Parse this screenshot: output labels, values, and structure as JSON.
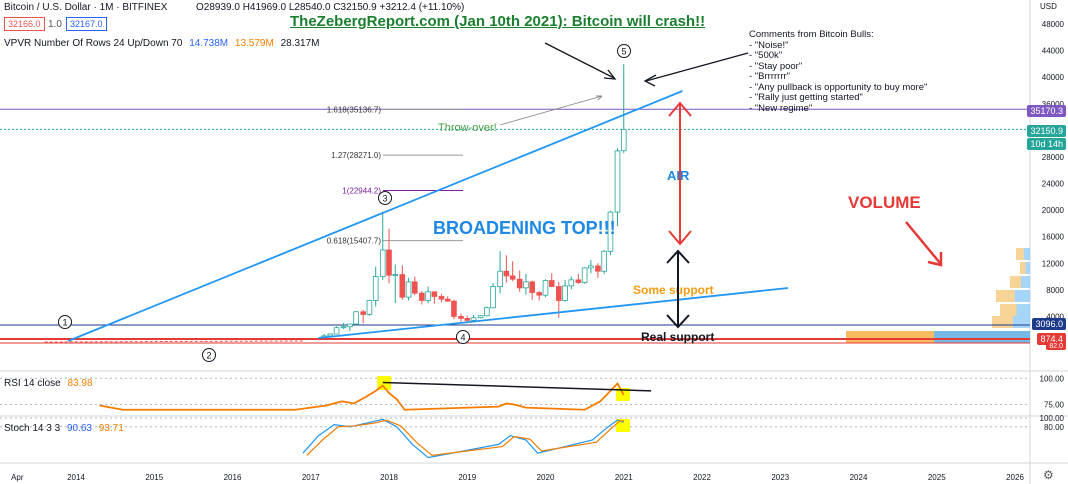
{
  "header": {
    "symbol": "Bitcoin / U.S. Dollar · 1M · BITFINEX",
    "ohlc": "O28939.0 H41969.0 L28540.0 C32150.9 +3212.4 (+11.10%)",
    "sell_price": "32166.0",
    "spread": "1.0",
    "buy_price": "32167.0",
    "vpvr_label": "VPVR Number Of Rows 24 Up/Down 70",
    "vpvr_up": "14.738M",
    "vpvr_down": "13.579M",
    "vpvr_total": "28.317M"
  },
  "currency": "USD",
  "title": "TheZebergReport.com (Jan 10th 2021): Bitcoin will crash!!",
  "comments": "Comments from Bitcoin Bulls:\n- \"Noise!\"\n- \"500k\"\n- \"Stay poor\"\n- \"Brrrrrrr\"\n- \"Any pullback is opportunity to buy more\"\n- \"Rally just getting started\"\n- \"New regime\"",
  "price_tags": {
    "level_35170": "35170.3",
    "last_price": "32150.9",
    "countdown": "10d 14h",
    "level_3096": "3096.0",
    "level_874": "874.4",
    "level_82": "82.0"
  },
  "colors": {
    "up_candle": "#26a69a",
    "down_candle": "#ef5350",
    "trendline": "#2196f3",
    "annotation_red": "#e53935",
    "rsi": "#f57c00",
    "stoch_k": "#2196f3",
    "stoch_d": "#f57c00",
    "highlight": "#ffff00"
  },
  "indicators": {
    "rsi_label": "RSI 14 close",
    "rsi_value": "83.98",
    "stoch_label": "Stoch 14 3 3",
    "stoch_k_value": "90.63",
    "stoch_d_value": "93.71"
  },
  "chart_data": {
    "type": "candlestick",
    "ylabel": "USD",
    "y_ticks": [
      4000,
      8000,
      12000,
      16000,
      20000,
      24000,
      28000,
      32000,
      36000,
      40000,
      44000,
      48000
    ],
    "x_ticks": [
      "Apr",
      "2014",
      "2015",
      "2016",
      "2017",
      "2018",
      "2019",
      "2020",
      "2021",
      "2022",
      "2023",
      "2024",
      "2025",
      "2026"
    ],
    "x_tick_years": [
      2013.25,
      2014,
      2015,
      2016,
      2017,
      2018,
      2019,
      2020,
      2021,
      2022,
      2023,
      2024,
      2025,
      2026
    ],
    "candles": [
      {
        "t": 2017.17,
        "o": 1000,
        "c": 1070,
        "h": 1350,
        "l": 900
      },
      {
        "t": 2017.25,
        "o": 1070,
        "c": 1350,
        "h": 1450,
        "l": 1000
      },
      {
        "t": 2017.33,
        "o": 1350,
        "c": 2300,
        "h": 2500,
        "l": 1300
      },
      {
        "t": 2017.42,
        "o": 2300,
        "c": 2450,
        "h": 3000,
        "l": 2100
      },
      {
        "t": 2017.5,
        "o": 2450,
        "c": 2850,
        "h": 2900,
        "l": 1800
      },
      {
        "t": 2017.58,
        "o": 2850,
        "c": 4700,
        "h": 4800,
        "l": 2700
      },
      {
        "t": 2017.67,
        "o": 4700,
        "c": 4300,
        "h": 5000,
        "l": 3000
      },
      {
        "t": 2017.75,
        "o": 4300,
        "c": 6400,
        "h": 6500,
        "l": 4100
      },
      {
        "t": 2017.83,
        "o": 6400,
        "c": 10000,
        "h": 11500,
        "l": 5500
      },
      {
        "t": 2017.92,
        "o": 10000,
        "c": 14000,
        "h": 19800,
        "l": 9500
      },
      {
        "t": 2018.0,
        "o": 14000,
        "c": 10200,
        "h": 17200,
        "l": 9000
      },
      {
        "t": 2018.08,
        "o": 10200,
        "c": 10300,
        "h": 11800,
        "l": 6000
      },
      {
        "t": 2018.17,
        "o": 10300,
        "c": 6900,
        "h": 11700,
        "l": 6500
      },
      {
        "t": 2018.25,
        "o": 6900,
        "c": 9200,
        "h": 9800,
        "l": 6400
      },
      {
        "t": 2018.33,
        "o": 9200,
        "c": 7500,
        "h": 10000,
        "l": 7200
      },
      {
        "t": 2018.42,
        "o": 7500,
        "c": 6400,
        "h": 7800,
        "l": 5800
      },
      {
        "t": 2018.5,
        "o": 6400,
        "c": 7700,
        "h": 8500,
        "l": 6000
      },
      {
        "t": 2018.58,
        "o": 7700,
        "c": 7000,
        "h": 7800,
        "l": 5900
      },
      {
        "t": 2018.67,
        "o": 7000,
        "c": 6600,
        "h": 7400,
        "l": 6100
      },
      {
        "t": 2018.75,
        "o": 6600,
        "c": 6300,
        "h": 7000,
        "l": 6200
      },
      {
        "t": 2018.83,
        "o": 6300,
        "c": 4000,
        "h": 6500,
        "l": 3600
      },
      {
        "t": 2018.92,
        "o": 4000,
        "c": 3700,
        "h": 4400,
        "l": 3200
      },
      {
        "t": 2019.0,
        "o": 3700,
        "c": 3400,
        "h": 4100,
        "l": 3300
      },
      {
        "t": 2019.08,
        "o": 3400,
        "c": 3800,
        "h": 4200,
        "l": 3300
      },
      {
        "t": 2019.17,
        "o": 3800,
        "c": 4100,
        "h": 4200,
        "l": 3700
      },
      {
        "t": 2019.25,
        "o": 4100,
        "c": 5300,
        "h": 5500,
        "l": 4000
      },
      {
        "t": 2019.33,
        "o": 5300,
        "c": 8500,
        "h": 9000,
        "l": 5200
      },
      {
        "t": 2019.42,
        "o": 8500,
        "c": 10800,
        "h": 13800,
        "l": 7500
      },
      {
        "t": 2019.5,
        "o": 10800,
        "c": 10100,
        "h": 13200,
        "l": 9100
      },
      {
        "t": 2019.58,
        "o": 10100,
        "c": 9600,
        "h": 12300,
        "l": 9300
      },
      {
        "t": 2019.67,
        "o": 9600,
        "c": 8300,
        "h": 10900,
        "l": 7700
      },
      {
        "t": 2019.75,
        "o": 8300,
        "c": 9200,
        "h": 10400,
        "l": 7300
      },
      {
        "t": 2019.83,
        "o": 9200,
        "c": 7600,
        "h": 9400,
        "l": 6500
      },
      {
        "t": 2019.92,
        "o": 7600,
        "c": 7200,
        "h": 7800,
        "l": 6400
      },
      {
        "t": 2020.0,
        "o": 7200,
        "c": 9400,
        "h": 9600,
        "l": 6900
      },
      {
        "t": 2020.08,
        "o": 9400,
        "c": 8500,
        "h": 10500,
        "l": 8400
      },
      {
        "t": 2020.17,
        "o": 8500,
        "c": 6400,
        "h": 9200,
        "l": 3800
      },
      {
        "t": 2020.25,
        "o": 6400,
        "c": 8600,
        "h": 9500,
        "l": 6200
      },
      {
        "t": 2020.33,
        "o": 8600,
        "c": 9500,
        "h": 10000,
        "l": 8100
      },
      {
        "t": 2020.42,
        "o": 9500,
        "c": 9100,
        "h": 10400,
        "l": 8900
      },
      {
        "t": 2020.5,
        "o": 9100,
        "c": 11300,
        "h": 11400,
        "l": 8900
      },
      {
        "t": 2020.58,
        "o": 11300,
        "c": 11600,
        "h": 12500,
        "l": 10500
      },
      {
        "t": 2020.67,
        "o": 11600,
        "c": 10800,
        "h": 12000,
        "l": 9800
      },
      {
        "t": 2020.75,
        "o": 10800,
        "c": 13800,
        "h": 14000,
        "l": 10400
      },
      {
        "t": 2020.83,
        "o": 13800,
        "c": 19700,
        "h": 19900,
        "l": 13200
      },
      {
        "t": 2020.92,
        "o": 19700,
        "c": 28900,
        "h": 29300,
        "l": 17600
      },
      {
        "t": 2021.0,
        "o": 28939,
        "c": 32150.9,
        "h": 41969,
        "l": 28540
      }
    ],
    "rsi": {
      "series": [
        {
          "t": 2014.3,
          "v": 74
        },
        {
          "t": 2014.6,
          "v": 70
        },
        {
          "t": 2016.8,
          "v": 70
        },
        {
          "t": 2017.0,
          "v": 72
        },
        {
          "t": 2017.2,
          "v": 74
        },
        {
          "t": 2017.4,
          "v": 78
        },
        {
          "t": 2017.55,
          "v": 76
        },
        {
          "t": 2017.7,
          "v": 82
        },
        {
          "t": 2017.83,
          "v": 88
        },
        {
          "t": 2017.92,
          "v": 93
        },
        {
          "t": 2018.0,
          "v": 86
        },
        {
          "t": 2018.1,
          "v": 80
        },
        {
          "t": 2018.2,
          "v": 70
        },
        {
          "t": 2019.4,
          "v": 73
        },
        {
          "t": 2019.5,
          "v": 76
        },
        {
          "t": 2019.6,
          "v": 75
        },
        {
          "t": 2019.75,
          "v": 72
        },
        {
          "t": 2020.5,
          "v": 70
        },
        {
          "t": 2020.7,
          "v": 78
        },
        {
          "t": 2020.83,
          "v": 88
        },
        {
          "t": 2020.92,
          "v": 95
        },
        {
          "t": 2021.0,
          "v": 83.98
        }
      ],
      "y_ticks": [
        75,
        100
      ],
      "ylim": [
        65,
        105
      ],
      "divergence_line": [
        {
          "t": 2017.92,
          "v": 96
        },
        {
          "t": 2021.35,
          "v": 88
        }
      ]
    },
    "stoch": {
      "k": [
        {
          "t": 2016.9,
          "v": 20
        },
        {
          "t": 2017.1,
          "v": 60
        },
        {
          "t": 2017.3,
          "v": 85
        },
        {
          "t": 2017.5,
          "v": 80
        },
        {
          "t": 2017.75,
          "v": 90
        },
        {
          "t": 2017.92,
          "v": 97
        },
        {
          "t": 2018.1,
          "v": 80
        },
        {
          "t": 2018.3,
          "v": 40
        },
        {
          "t": 2018.5,
          "v": 10
        },
        {
          "t": 2019.4,
          "v": 40
        },
        {
          "t": 2019.55,
          "v": 60
        },
        {
          "t": 2019.75,
          "v": 50
        },
        {
          "t": 2019.9,
          "v": 20
        },
        {
          "t": 2020.6,
          "v": 50
        },
        {
          "t": 2020.8,
          "v": 80
        },
        {
          "t": 2020.92,
          "v": 95
        },
        {
          "t": 2021.0,
          "v": 90.63
        }
      ],
      "d": [
        {
          "t": 2016.95,
          "v": 15
        },
        {
          "t": 2017.15,
          "v": 50
        },
        {
          "t": 2017.35,
          "v": 80
        },
        {
          "t": 2017.55,
          "v": 82
        },
        {
          "t": 2017.8,
          "v": 88
        },
        {
          "t": 2017.97,
          "v": 95
        },
        {
          "t": 2018.15,
          "v": 82
        },
        {
          "t": 2018.35,
          "v": 45
        },
        {
          "t": 2018.55,
          "v": 15
        },
        {
          "t": 2019.45,
          "v": 35
        },
        {
          "t": 2019.6,
          "v": 58
        },
        {
          "t": 2019.8,
          "v": 52
        },
        {
          "t": 2019.95,
          "v": 25
        },
        {
          "t": 2020.65,
          "v": 45
        },
        {
          "t": 2020.85,
          "v": 78
        },
        {
          "t": 2020.95,
          "v": 93
        },
        {
          "t": 2021.0,
          "v": 93.71
        }
      ],
      "y_ticks": [
        80,
        100
      ],
      "ylim": [
        0,
        100
      ]
    },
    "fib_levels": [
      {
        "label": "1.618(35136.7)",
        "value": 35136.7
      },
      {
        "label": "1.27(28271.0)",
        "value": 28271.0
      },
      {
        "label": "1(22944.2)",
        "value": 22944.2
      },
      {
        "label": "0.618(15407.7)",
        "value": 15407.7
      }
    ],
    "wave_labels": [
      "1",
      "2",
      "3",
      "4",
      "5"
    ],
    "annotations": {
      "throw_over": "Throw-over!",
      "broadening_top": "BROADENING TOP!!!",
      "air": "AIR",
      "some_support": "Some support",
      "real_support": "Real support",
      "volume": "VOLUME"
    }
  }
}
